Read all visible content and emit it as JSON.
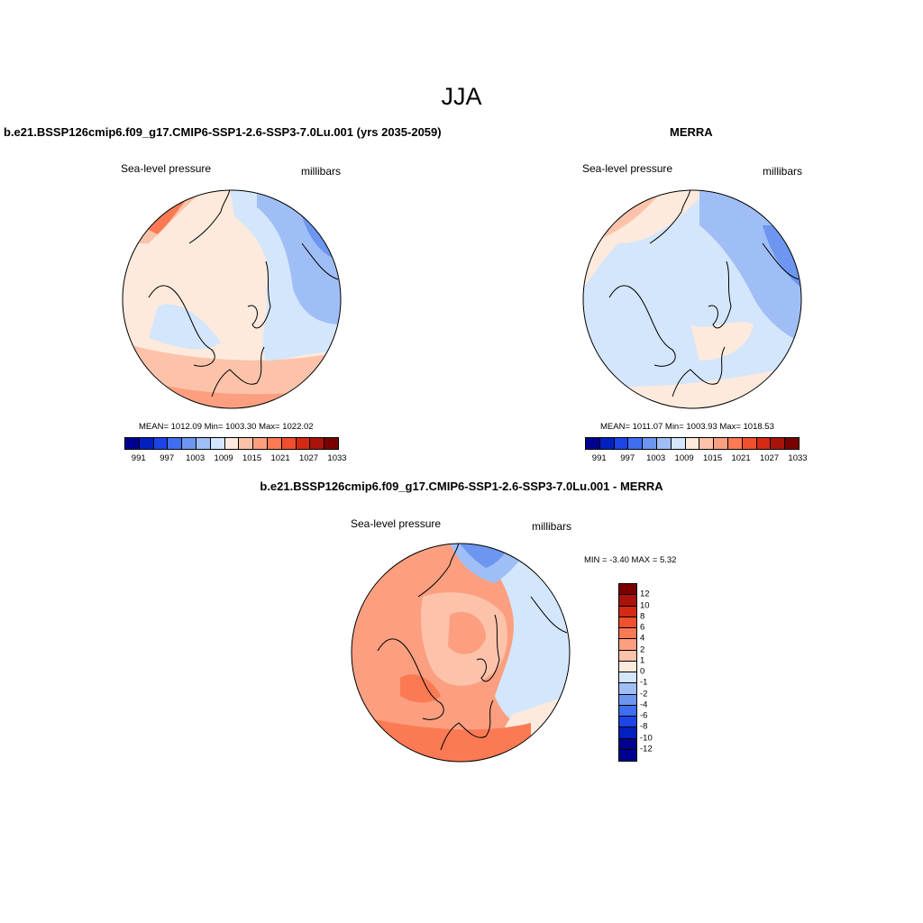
{
  "figure": {
    "season": "JJA"
  },
  "panels": [
    {
      "id": "model",
      "title": "b.e21.BSSP126cmip6.f09_g17.CMIP6-SSP1-2.6-SSP3-7.0Lu.001 (yrs 2035-2059)",
      "field": "Sea-level pressure",
      "units": "millibars",
      "stats": "MEAN= 1012.09  Min= 1003.30  Max= 1022.02",
      "map_icon": "polar-stereographic-map"
    },
    {
      "id": "obs",
      "title": "MERRA",
      "field": "Sea-level pressure",
      "units": "millibars",
      "stats": "MEAN= 1011.07  Min= 1003.93  Max= 1018.53",
      "map_icon": "polar-stereographic-map"
    },
    {
      "id": "diff",
      "title": "b.e21.BSSP126cmip6.f09_g17.CMIP6-SSP1-2.6-SSP3-7.0Lu.001 - MERRA",
      "field": "Sea-level pressure",
      "units": "millibars",
      "stats": "MIN =  -3.40 MAX =   5.32",
      "map_icon": "polar-stereographic-map"
    }
  ],
  "colorbar_abs": {
    "colors": [
      "#00008f",
      "#0020c0",
      "#1c44e6",
      "#3f6ef0",
      "#6c96f0",
      "#a0bef6",
      "#d4e6fc",
      "#fdeadc",
      "#fcc3aa",
      "#fc9f80",
      "#fb7a54",
      "#f0502e",
      "#d42a14",
      "#a8140a",
      "#7a0000"
    ],
    "labels": [
      "991",
      "997",
      "1003",
      "1009",
      "1015",
      "1021",
      "1027",
      "1033"
    ]
  },
  "colorbar_diff": {
    "colors": [
      "#7a0000",
      "#a8140a",
      "#d42a14",
      "#f0502e",
      "#fb7a54",
      "#fc9f80",
      "#fcc3aa",
      "#fdeadc",
      "#d4e6fc",
      "#a0bef6",
      "#6c96f0",
      "#3f6ef0",
      "#1c44e6",
      "#0020c0",
      "#00008f",
      "#00008f"
    ],
    "labels": [
      "12",
      "10",
      "8",
      "6",
      "4",
      "2",
      "1",
      "0",
      "-1",
      "-2",
      "-4",
      "-6",
      "-8",
      "-10",
      "-12"
    ]
  },
  "colors": {
    "pink": "#fdeadc",
    "lightblue": "#d4e6fc",
    "blue2": "#a0bef6",
    "blue3": "#6c96f0",
    "salmon": "#fcc3aa",
    "orange": "#fc9f80",
    "red": "#fb7a54"
  }
}
